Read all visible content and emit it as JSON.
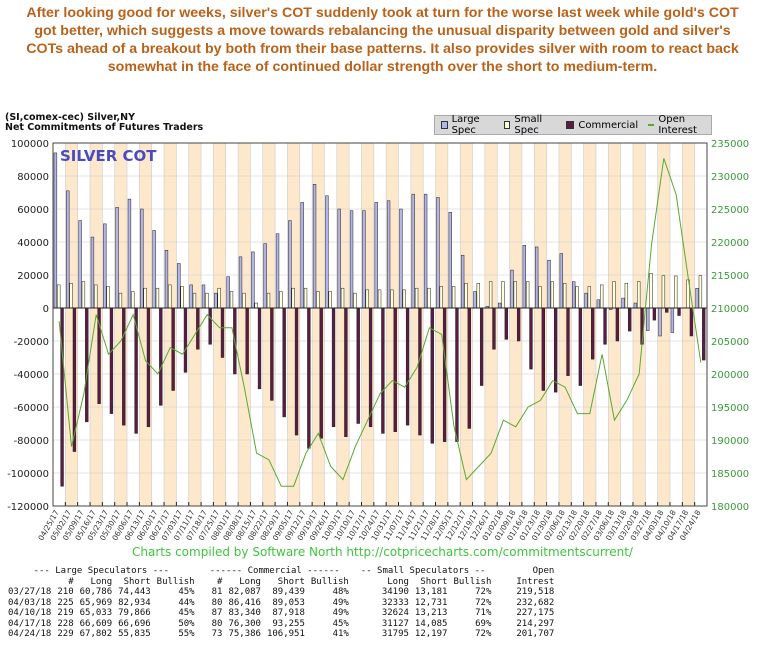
{
  "headline": "After looking good for weeks, silver's COT suddenly took at turn for the worse last week while gold's COT got better, which suggests a move towards rebalancing the unusual disparity between gold and silver's COTs ahead of a breakout by both from their base patterns. It also provides silver with room to react back somewhat in the face of continued dollar strength over the short to medium-term.",
  "header": {
    "line1": "(SI,comex-cec) Silver,NY",
    "line2": "Net Commitments of Futures Traders"
  },
  "legend": [
    "Large Spec",
    "Small Spec",
    "Commercial",
    "Open Interest"
  ],
  "credit": "Charts compiled by Software North  http://cotpricecharts.com/commitmentscurrent/",
  "colors": {
    "large": "#b4b4e6",
    "small": "#ffffdc",
    "commercial": "#5c1c40",
    "oi": "#5aa832",
    "stripe": "#fde8cc",
    "title": "#4b4bbf"
  },
  "chart_data": {
    "type": "bar+line",
    "title": "SILVER COT",
    "ylim": [
      -120000,
      100000
    ],
    "y2lim": [
      180000,
      235000
    ],
    "yticks": [
      100000,
      80000,
      60000,
      40000,
      20000,
      0,
      -20000,
      -40000,
      -60000,
      -80000,
      -100000,
      -120000
    ],
    "y2ticks": [
      235000,
      230000,
      225000,
      220000,
      215000,
      210000,
      205000,
      200000,
      195000,
      190000,
      185000,
      180000
    ],
    "dates": [
      "04/25/17",
      "05/02/17",
      "05/09/17",
      "05/16/17",
      "05/23/17",
      "05/30/17",
      "06/06/17",
      "06/13/17",
      "06/20/17",
      "06/27/17",
      "07/03/17",
      "07/11/17",
      "07/18/17",
      "07/25/17",
      "08/01/17",
      "08/08/17",
      "08/15/17",
      "08/22/17",
      "08/29/17",
      "09/05/17",
      "09/12/17",
      "09/19/17",
      "09/26/17",
      "10/03/17",
      "10/10/17",
      "10/17/17",
      "10/24/17",
      "10/31/17",
      "11/07/17",
      "11/14/17",
      "11/21/17",
      "11/28/17",
      "12/05/17",
      "12/12/17",
      "12/19/17",
      "12/26/17",
      "01/02/18",
      "01/09/18",
      "01/16/18",
      "01/23/18",
      "01/30/18",
      "02/06/18",
      "02/13/18",
      "02/20/18",
      "02/27/18",
      "03/06/18",
      "03/13/18",
      "03/20/18",
      "03/27/18",
      "04/03/18",
      "04/10/18",
      "04/17/18",
      "04/24/18"
    ],
    "series": [
      {
        "name": "Large Spec",
        "values": [
          94000,
          71000,
          53000,
          43000,
          51000,
          61000,
          66000,
          60000,
          47000,
          35000,
          27000,
          14000,
          14000,
          9000,
          19000,
          31000,
          34000,
          39000,
          45000,
          53000,
          64000,
          75000,
          68000,
          60000,
          59000,
          59000,
          64000,
          65000,
          60000,
          69000,
          69000,
          67000,
          58000,
          32000,
          10000,
          1000,
          3000,
          23000,
          38000,
          37000,
          29000,
          33000,
          16000,
          9000,
          5000,
          -1000,
          6000,
          3000,
          -13657,
          -16965,
          -14833,
          -87,
          11967
        ]
      },
      {
        "name": "Small Spec",
        "values": [
          14000,
          15000,
          16000,
          14000,
          13000,
          9000,
          10000,
          12000,
          12000,
          14000,
          13000,
          9000,
          9000,
          12000,
          10000,
          9000,
          3000,
          9000,
          10000,
          12000,
          12000,
          10000,
          10000,
          12000,
          9000,
          11000,
          11000,
          11000,
          11000,
          12000,
          12000,
          13000,
          13000,
          15000,
          15000,
          16000,
          16000,
          16000,
          16000,
          13000,
          16000,
          15000,
          13000,
          13000,
          14000,
          16000,
          15000,
          16000,
          21009,
          19602,
          19411,
          17042,
          19598
        ]
      },
      {
        "name": "Commercial",
        "values": [
          -108000,
          -87000,
          -69000,
          -58000,
          -64000,
          -71000,
          -76000,
          -72000,
          -59000,
          -50000,
          -39000,
          -25000,
          -22000,
          -30000,
          -40000,
          -40000,
          -49000,
          -56000,
          -66000,
          -77000,
          -85000,
          -79000,
          -72000,
          -78000,
          -70000,
          -72000,
          -76000,
          -75000,
          -71000,
          -77000,
          -82000,
          -81000,
          -81000,
          -73000,
          -47000,
          -25000,
          -19000,
          -20000,
          -37000,
          -50000,
          -51000,
          -41000,
          -47000,
          -31000,
          -22000,
          -20000,
          -14000,
          -22000,
          -7352,
          -2637,
          -4578,
          -16955,
          -31565
        ]
      },
      {
        "name": "Open Interest",
        "values": [
          208000,
          189000,
          197000,
          209000,
          203000,
          205000,
          209000,
          202000,
          200000,
          204000,
          203000,
          206000,
          209000,
          207000,
          207000,
          198000,
          188000,
          187000,
          183000,
          183000,
          188000,
          191000,
          186000,
          184000,
          189000,
          193000,
          197000,
          199000,
          198000,
          201000,
          207000,
          206000,
          192000,
          184000,
          186000,
          188000,
          193000,
          192000,
          195000,
          196000,
          199000,
          198000,
          194000,
          194000,
          203000,
          193000,
          196000,
          200000,
          219518,
          232682,
          227175,
          214297,
          201707
        ]
      }
    ]
  },
  "table": {
    "groups": [
      "--- Large Speculators ---",
      "------ Commercial ------",
      "-- Small Speculators --",
      "Open"
    ],
    "columns": [
      "",
      "#",
      "Long",
      "Short",
      "Bullish",
      "#",
      "Long",
      "Short",
      "Bullish",
      "Long",
      "Short",
      "Bullish",
      "Intrest"
    ],
    "rows": [
      [
        "03/27/18",
        "210",
        "60,786",
        "74,443",
        "45%",
        "81",
        "82,087",
        "89,439",
        "48%",
        "34190",
        "13,181",
        "72%",
        "219,518"
      ],
      [
        "04/03/18",
        "225",
        "65,969",
        "82,934",
        "44%",
        "80",
        "86,416",
        "89,053",
        "49%",
        "32333",
        "12,731",
        "72%",
        "232,682"
      ],
      [
        "04/10/18",
        "219",
        "65,033",
        "79,866",
        "45%",
        "87",
        "83,340",
        "87,918",
        "49%",
        "32624",
        "13,213",
        "71%",
        "227,175"
      ],
      [
        "04/17/18",
        "228",
        "66,609",
        "66,696",
        "50%",
        "80",
        "76,300",
        "93,255",
        "45%",
        "31127",
        "14,085",
        "69%",
        "214,297"
      ],
      [
        "04/24/18",
        "229",
        "67,802",
        "55,835",
        "55%",
        "73",
        "75,386",
        "106,951",
        "41%",
        "31795",
        "12,197",
        "72%",
        "201,707"
      ]
    ]
  }
}
